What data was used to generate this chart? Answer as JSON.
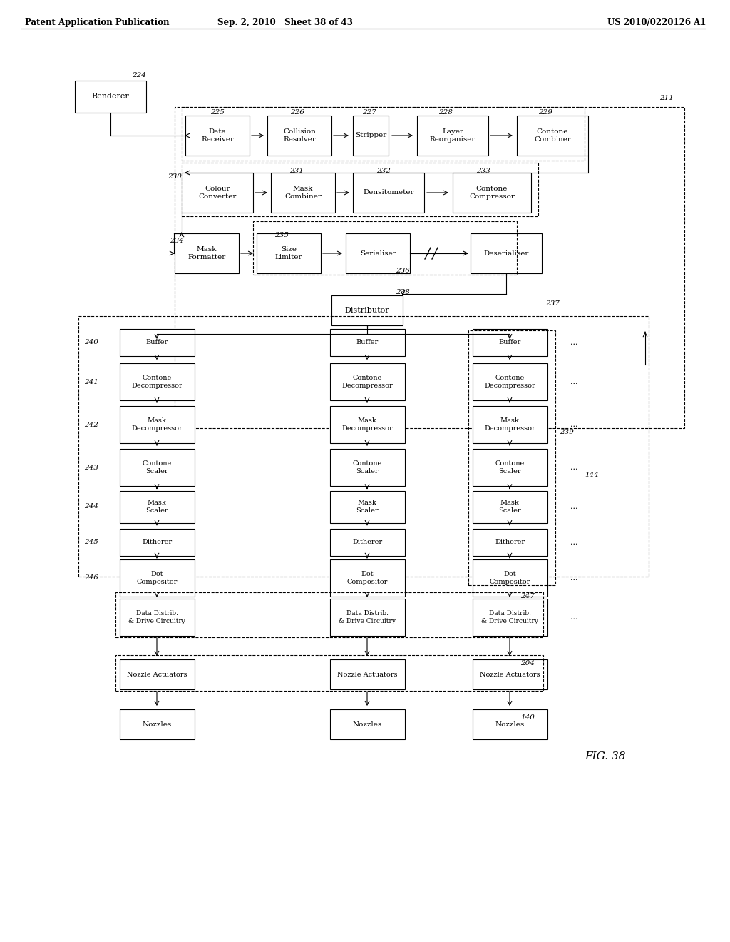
{
  "header_left": "Patent Application Publication",
  "header_mid": "Sep. 2, 2010   Sheet 38 of 43",
  "header_right": "US 2010/0220126 A1",
  "fig_label": "FIG. 38",
  "background_color": "#ffffff",
  "line_color": "#000000",
  "box_fill": "#ffffff",
  "dashed_fill": "#f0f0f0"
}
